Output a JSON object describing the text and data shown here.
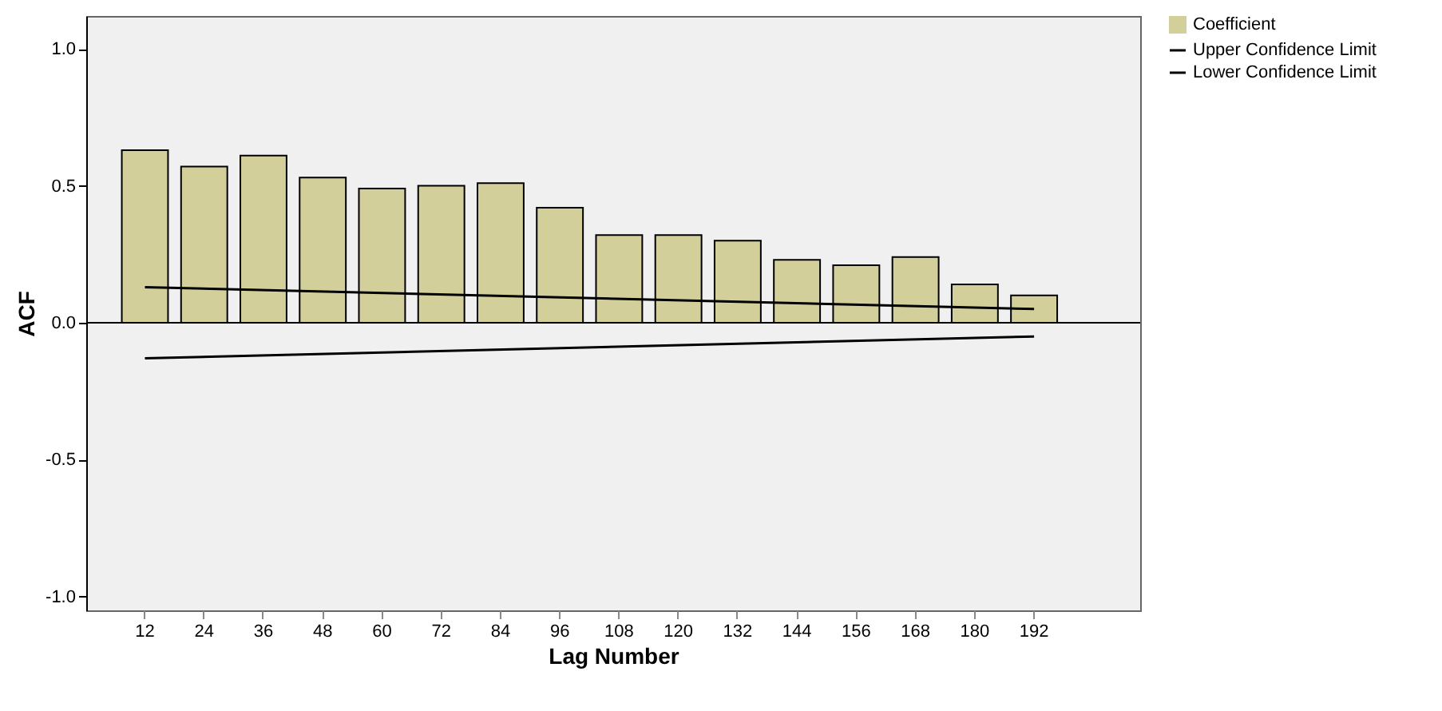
{
  "chart_data": {
    "type": "bar",
    "xlabel": "Lag Number",
    "ylabel": "ACF",
    "categories": [
      "12",
      "24",
      "36",
      "48",
      "60",
      "72",
      "84",
      "96",
      "108",
      "120",
      "132",
      "144",
      "156",
      "168",
      "180",
      "192"
    ],
    "series": [
      {
        "name": "Coefficient",
        "color": "#d3cf9a",
        "values": [
          0.63,
          0.57,
          0.61,
          0.53,
          0.49,
          0.5,
          0.51,
          0.42,
          0.32,
          0.32,
          0.3,
          0.23,
          0.21,
          0.24,
          0.14,
          0.1
        ]
      },
      {
        "name": "Upper Confidence Limit",
        "type": "line",
        "color": "#000000",
        "x": [
          "12",
          "192"
        ],
        "values": [
          0.13,
          0.05
        ]
      },
      {
        "name": "Lower Confidence Limit",
        "type": "line",
        "color": "#000000",
        "x": [
          "12",
          "192"
        ],
        "values": [
          -0.13,
          -0.05
        ]
      }
    ],
    "ylim": [
      -1.05,
      1.12
    ],
    "yticks": [
      {
        "value": -1,
        "label": "-1.0"
      },
      {
        "value": -0.5,
        "label": "-0.5"
      },
      {
        "value": 0,
        "label": "0.0"
      },
      {
        "value": 0.5,
        "label": "0.5"
      },
      {
        "value": 1,
        "label": "1.0"
      }
    ],
    "ref_lines": [
      {
        "axis": "y",
        "value": 0,
        "color": "#000000"
      }
    ],
    "grid": false,
    "legend": "top right"
  }
}
